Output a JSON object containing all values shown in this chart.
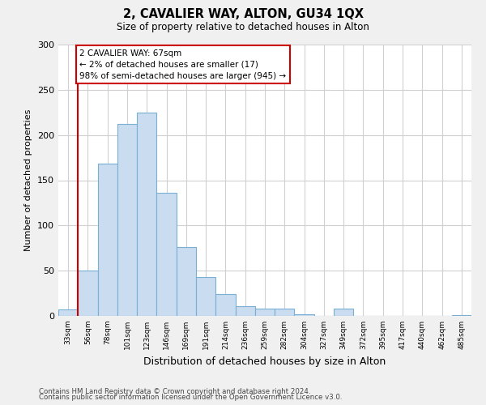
{
  "title": "2, CAVALIER WAY, ALTON, GU34 1QX",
  "subtitle": "Size of property relative to detached houses in Alton",
  "xlabel": "Distribution of detached houses by size in Alton",
  "ylabel": "Number of detached properties",
  "bar_labels": [
    "33sqm",
    "56sqm",
    "78sqm",
    "101sqm",
    "123sqm",
    "146sqm",
    "169sqm",
    "191sqm",
    "214sqm",
    "236sqm",
    "259sqm",
    "282sqm",
    "304sqm",
    "327sqm",
    "349sqm",
    "372sqm",
    "395sqm",
    "417sqm",
    "440sqm",
    "462sqm",
    "485sqm"
  ],
  "bar_values": [
    7,
    50,
    168,
    212,
    225,
    136,
    76,
    43,
    24,
    11,
    8,
    8,
    2,
    0,
    8,
    0,
    0,
    0,
    0,
    0,
    1
  ],
  "bar_color": "#c9dcf0",
  "bar_edge_color": "#7aafd4",
  "vline_color": "#cc0000",
  "annotation_text": "2 CAVALIER WAY: 67sqm\n← 2% of detached houses are smaller (17)\n98% of semi-detached houses are larger (945) →",
  "annotation_box_edge": "#cc0000",
  "ylim": [
    0,
    300
  ],
  "yticks": [
    0,
    50,
    100,
    150,
    200,
    250,
    300
  ],
  "footer1": "Contains HM Land Registry data © Crown copyright and database right 2024.",
  "footer2": "Contains public sector information licensed under the Open Government Licence v3.0.",
  "bg_color": "#f0f0f0",
  "plot_bg_color": "#ffffff",
  "grid_color": "#d0d0d0"
}
